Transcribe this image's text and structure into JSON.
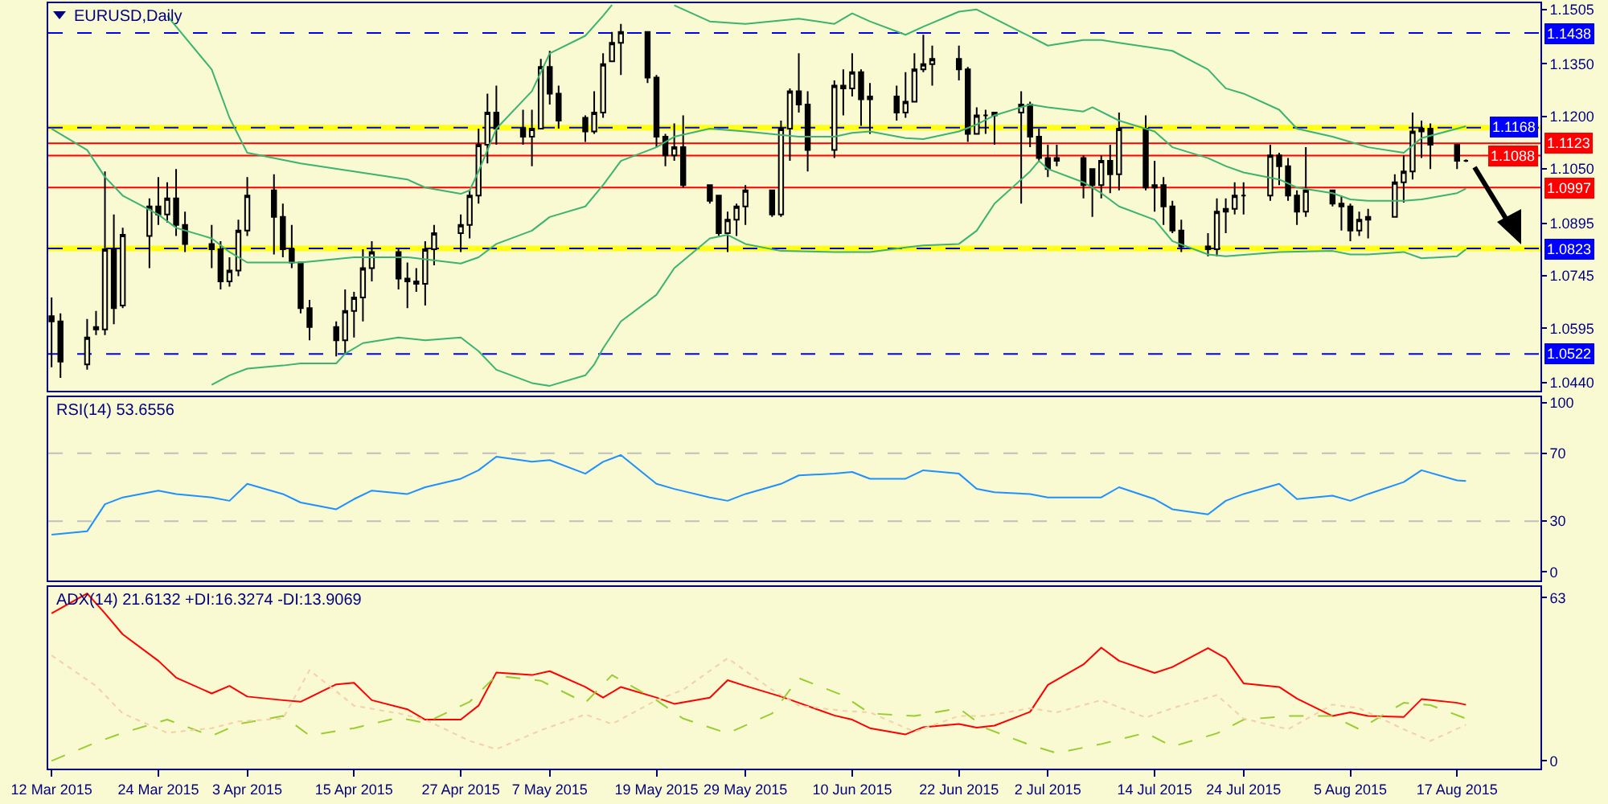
{
  "chart_data": [
    {
      "type": "candlestick",
      "title": "EURUSD,Daily",
      "color": "#000000",
      "x": [
        "2015-03-12",
        "2015-03-13",
        "2015-03-16",
        "2015-03-17",
        "2015-03-18",
        "2015-03-19",
        "2015-03-20",
        "2015-03-23",
        "2015-03-24",
        "2015-03-25",
        "2015-03-26",
        "2015-03-27",
        "2015-03-30",
        "2015-03-31",
        "2015-04-01",
        "2015-04-02",
        "2015-04-03",
        "2015-04-06",
        "2015-04-07",
        "2015-04-08",
        "2015-04-09",
        "2015-04-10",
        "2015-04-13",
        "2015-04-14",
        "2015-04-15",
        "2015-04-16",
        "2015-04-17",
        "2015-04-20",
        "2015-04-21",
        "2015-04-22",
        "2015-04-23",
        "2015-04-24",
        "2015-04-27",
        "2015-04-28",
        "2015-04-29",
        "2015-04-30",
        "2015-05-01",
        "2015-05-04",
        "2015-05-05",
        "2015-05-06",
        "2015-05-07",
        "2015-05-08",
        "2015-05-11",
        "2015-05-12",
        "2015-05-13",
        "2015-05-14",
        "2015-05-15",
        "2015-05-18",
        "2015-05-19",
        "2015-05-20",
        "2015-05-21",
        "2015-05-22",
        "2015-05-25",
        "2015-05-26",
        "2015-05-27",
        "2015-05-28",
        "2015-05-29",
        "2015-06-01",
        "2015-06-02",
        "2015-06-03",
        "2015-06-04",
        "2015-06-05",
        "2015-06-08",
        "2015-06-09",
        "2015-06-10",
        "2015-06-11",
        "2015-06-12",
        "2015-06-15",
        "2015-06-16",
        "2015-06-17",
        "2015-06-18",
        "2015-06-19",
        "2015-06-22",
        "2015-06-23",
        "2015-06-24",
        "2015-06-25",
        "2015-06-26",
        "2015-06-29",
        "2015-06-30",
        "2015-07-01",
        "2015-07-02",
        "2015-07-03",
        "2015-07-06",
        "2015-07-07",
        "2015-07-08",
        "2015-07-09",
        "2015-07-10",
        "2015-07-13",
        "2015-07-14",
        "2015-07-15",
        "2015-07-16",
        "2015-07-17",
        "2015-07-20",
        "2015-07-21",
        "2015-07-22",
        "2015-07-23",
        "2015-07-24",
        "2015-07-27",
        "2015-07-28",
        "2015-07-29",
        "2015-07-30",
        "2015-07-31",
        "2015-08-03",
        "2015-08-04",
        "2015-08-05",
        "2015-08-06",
        "2015-08-07",
        "2015-08-10",
        "2015-08-11",
        "2015-08-12",
        "2015-08-13",
        "2015-08-14",
        "2015-08-17",
        "2015-08-18"
      ],
      "ohlc": [
        [
          1.063,
          1.0683,
          1.0484,
          1.0615
        ],
        [
          1.0615,
          1.0638,
          1.0454,
          1.05
        ],
        [
          1.0492,
          1.0622,
          1.0477,
          1.0569
        ],
        [
          1.0592,
          1.0645,
          1.0576,
          1.0599
        ],
        [
          1.0592,
          1.1043,
          1.0576,
          1.0821
        ],
        [
          1.0821,
          1.092,
          1.0607,
          1.0653
        ],
        [
          1.066,
          1.0882,
          1.0653,
          1.0862
        ],
        [
          1.0859,
          1.0966,
          1.0767,
          1.0943
        ],
        [
          1.0943,
          1.1027,
          1.089,
          1.092
        ],
        [
          1.092,
          1.1012,
          1.0897,
          1.0966
        ],
        [
          1.0966,
          1.105,
          1.0859,
          1.089
        ],
        [
          1.089,
          1.0928,
          1.0813,
          1.0836
        ],
        [
          1.0836,
          1.089,
          1.0767,
          1.0821
        ],
        [
          1.0821,
          1.0844,
          1.0706,
          1.0729
        ],
        [
          1.0729,
          1.0798,
          1.0714,
          1.076
        ],
        [
          1.076,
          1.0905,
          1.0744,
          1.0874
        ],
        [
          1.0874,
          1.1027,
          1.0859,
          1.0974
        ],
        [
          1.0989,
          1.1035,
          1.0806,
          1.0913
        ],
        [
          1.0913,
          1.0951,
          1.0798,
          1.0821
        ],
        [
          1.0821,
          1.089,
          1.0767,
          1.0783
        ],
        [
          1.0783,
          1.0783,
          1.0638,
          1.0653
        ],
        [
          1.0653,
          1.0676,
          1.0561,
          1.0599
        ],
        [
          1.0599,
          1.0615,
          1.0515,
          1.0561
        ],
        [
          1.0561,
          1.0706,
          1.0523,
          1.0645
        ],
        [
          1.0645,
          1.0699,
          1.0569,
          1.0683
        ],
        [
          1.0683,
          1.0821,
          1.0615,
          1.0767
        ],
        [
          1.0767,
          1.0844,
          1.0729,
          1.0813
        ],
        [
          1.0813,
          1.0821,
          1.0706,
          1.0737
        ],
        [
          1.0737,
          1.0783,
          1.0653,
          1.0729
        ],
        [
          1.0729,
          1.0767,
          1.0699,
          1.0722
        ],
        [
          1.0722,
          1.0844,
          1.066,
          1.0821
        ],
        [
          1.0821,
          1.089,
          1.0775,
          1.0867
        ],
        [
          1.0867,
          1.092,
          1.0813,
          1.089
        ],
        [
          1.089,
          1.0989,
          1.0852,
          1.0974
        ],
        [
          1.0974,
          1.1165,
          1.0951,
          1.1119
        ],
        [
          1.1119,
          1.1265,
          1.1066,
          1.1211
        ],
        [
          1.1211,
          1.1288,
          1.1119,
          1.1165
        ],
        [
          1.1165,
          1.1219,
          1.1119,
          1.1142
        ],
        [
          1.1142,
          1.1219,
          1.1058,
          1.1165
        ],
        [
          1.1165,
          1.1364,
          1.1165,
          1.1341
        ],
        [
          1.1341,
          1.1387,
          1.1234,
          1.1265
        ],
        [
          1.1265,
          1.1288,
          1.1165,
          1.1188
        ],
        [
          1.1196,
          1.1203,
          1.1127,
          1.1157
        ],
        [
          1.1157,
          1.1272,
          1.115,
          1.1211
        ],
        [
          1.1211,
          1.138,
          1.1196,
          1.1349
        ],
        [
          1.1357,
          1.1441,
          1.1357,
          1.141
        ],
        [
          1.141,
          1.1464,
          1.1318,
          1.1441
        ],
        [
          1.1441,
          1.1441,
          1.1295,
          1.1311
        ],
        [
          1.1311,
          1.1318,
          1.1112,
          1.1142
        ],
        [
          1.1142,
          1.115,
          1.1058,
          1.1089
        ],
        [
          1.1089,
          1.118,
          1.1073,
          1.1112
        ],
        [
          1.1112,
          1.1203,
          1.0997,
          1.1004
        ],
        [
          1.1004,
          1.1004,
          1.0951,
          1.0959
        ],
        [
          1.0974,
          1.0974,
          1.0859,
          1.0867
        ],
        [
          1.0867,
          1.0928,
          1.0813,
          1.0905
        ],
        [
          1.0905,
          1.0951,
          1.0859,
          1.0943
        ],
        [
          1.0943,
          1.1004,
          1.089,
          1.0989
        ],
        [
          1.0989,
          1.0989,
          1.0913,
          1.092
        ],
        [
          1.092,
          1.1188,
          1.0913,
          1.1165
        ],
        [
          1.1165,
          1.128,
          1.1073,
          1.1272
        ],
        [
          1.1272,
          1.138,
          1.1211,
          1.1234
        ],
        [
          1.1234,
          1.1272,
          1.1043,
          1.1104
        ],
        [
          1.1104,
          1.1303,
          1.1081,
          1.1288
        ],
        [
          1.1288,
          1.1334,
          1.1203,
          1.128
        ],
        [
          1.128,
          1.138,
          1.1257,
          1.1326
        ],
        [
          1.1326,
          1.1334,
          1.1173,
          1.1249
        ],
        [
          1.1249,
          1.1295,
          1.115,
          1.1257
        ],
        [
          1.1257,
          1.1288,
          1.1188,
          1.1211
        ],
        [
          1.1211,
          1.1326,
          1.1196,
          1.1242
        ],
        [
          1.1242,
          1.138,
          1.1242,
          1.1334
        ],
        [
          1.1334,
          1.1433,
          1.1326,
          1.1349
        ],
        [
          1.1349,
          1.1402,
          1.1288,
          1.1364
        ],
        [
          1.1364,
          1.1402,
          1.1303,
          1.1334
        ],
        [
          1.1334,
          1.1341,
          1.1127,
          1.115
        ],
        [
          1.115,
          1.1226,
          1.115,
          1.1203
        ],
        [
          1.1203,
          1.1219,
          1.115,
          1.1203
        ],
        [
          1.1203,
          1.1211,
          1.1119,
          1.1211
        ],
        [
          1.1211,
          1.1272,
          1.0951,
          1.1234
        ],
        [
          1.1234,
          1.1242,
          1.1112,
          1.1142
        ],
        [
          1.1142,
          1.1165,
          1.1073,
          1.1081
        ],
        [
          1.1081,
          1.1119,
          1.1027,
          1.105
        ],
        [
          1.1073,
          1.1119,
          1.1058,
          1.1081
        ],
        [
          1.1081,
          1.1089,
          1.0966,
          1.1004
        ],
        [
          1.105,
          1.105,
          1.0913,
          1.1004
        ],
        [
          1.1004,
          1.1089,
          1.0966,
          1.1073
        ],
        [
          1.1073,
          1.1119,
          1.0981,
          1.1035
        ],
        [
          1.1035,
          1.1211,
          1.0989,
          1.1165
        ],
        [
          1.1165,
          1.1203,
          1.0989,
          1.0997
        ],
        [
          1.0997,
          1.1073,
          1.0928,
          1.1004
        ],
        [
          1.1004,
          1.1027,
          1.089,
          1.0943
        ],
        [
          1.0943,
          1.0959,
          1.0867,
          1.0874
        ],
        [
          1.0874,
          1.0905,
          1.0813,
          1.0829
        ],
        [
          1.0829,
          1.0867,
          1.0801,
          1.0821
        ],
        [
          1.0821,
          1.0966,
          1.0801,
          1.0928
        ],
        [
          1.0928,
          1.0966,
          1.0867,
          1.0936
        ],
        [
          1.0936,
          1.1012,
          1.092,
          1.0974
        ],
        [
          1.0974,
          1.1012,
          1.092,
          1.0974
        ],
        [
          1.0974,
          1.1119,
          1.0959,
          1.1089
        ],
        [
          1.1089,
          1.1096,
          1.1004,
          1.1058
        ],
        [
          1.1058,
          1.1081,
          1.0959,
          1.0974
        ],
        [
          1.0974,
          1.0989,
          1.089,
          1.0928
        ],
        [
          1.0928,
          1.1112,
          1.0913,
          1.0989
        ],
        [
          1.0989,
          1.0989,
          1.0943,
          1.0951
        ],
        [
          1.0951,
          1.0974,
          1.0874,
          1.0943
        ],
        [
          1.0943,
          1.0951,
          1.0844,
          1.0874
        ],
        [
          1.0874,
          1.0928,
          1.0859,
          1.0905
        ],
        [
          1.0905,
          1.0936,
          1.0852,
          1.0913
        ],
        [
          1.0913,
          1.1035,
          1.0913,
          1.1012
        ],
        [
          1.1012,
          1.1089,
          1.0954,
          1.1043
        ],
        [
          1.1043,
          1.1211,
          1.102,
          1.1157
        ],
        [
          1.1157,
          1.1188,
          1.1081,
          1.1165
        ],
        [
          1.1165,
          1.118,
          1.105,
          1.1119
        ],
        [
          1.1119,
          1.1119,
          1.105,
          1.1073
        ],
        [
          1.1073,
          1.1077,
          1.107,
          1.1073
        ]
      ],
      "xlim": [
        "2015-03-11T15:00",
        "2015-08-26T09:00"
      ],
      "ylim": [
        1.0417,
        1.1523
      ],
      "yticks": [
        1.1505,
        {
          "value": 1.135,
          "label": "1.1350"
        },
        {
          "value": 1.12,
          "label": "1.1200"
        },
        {
          "value": 1.105,
          "label": "1.1050"
        },
        1.0895,
        1.0745,
        1.0595,
        {
          "value": 1.044,
          "label": "1.0440"
        }
      ],
      "tick_labels": "y",
      "bands": [
        {
          "axis": "y",
          "from": 1.116,
          "to": 1.1176,
          "color": "#ffff00"
        },
        {
          "axis": "y",
          "from": 1.0815,
          "to": 1.0831,
          "color": "#ffff00"
        }
      ],
      "ref_lines": [
        {
          "axis": "y",
          "value": 1.1438,
          "label": "1.1438",
          "color": "#0000ff",
          "line_style": "dashed"
        },
        {
          "axis": "y",
          "value": 1.1168,
          "label": "1.1168",
          "color": "#0000ff",
          "line_style": "dashed"
        },
        {
          "axis": "y",
          "value": 1.1123,
          "label": "1.1123",
          "color": "#ff0000",
          "line_style": "solid"
        },
        {
          "axis": "y",
          "value": 1.1088,
          "label": "1.1088",
          "color": "#ff0000",
          "line_style": "solid"
        },
        {
          "axis": "y",
          "value": 1.0997,
          "label": "1.0997",
          "color": "#ff0000",
          "line_style": "solid"
        },
        {
          "axis": "y",
          "value": 1.0823,
          "label": "1.0823",
          "color": "#0000ff",
          "line_style": "dashed"
        },
        {
          "axis": "y",
          "value": 1.0522,
          "label": "1.0522",
          "color": "#0000ff",
          "line_style": "dashed"
        }
      ],
      "series": [
        {
          "type": "line",
          "color": "#3cb371",
          "x": [
            "2015-03-25",
            "2015-03-30",
            "2015-04-01",
            "2015-04-03",
            "2015-04-09",
            "2015-04-15",
            "2015-04-21",
            "2015-04-23",
            "2015-04-27",
            "2015-04-28",
            "2015-04-29",
            "2015-05-01",
            "2015-05-05",
            "2015-05-07",
            "2015-05-11",
            "2015-05-13",
            "2015-05-14",
            "2015-05-18",
            "2015-05-21",
            "2015-05-25",
            "2015-05-29",
            "2015-06-04",
            "2015-06-08",
            "2015-06-10",
            "2015-06-12",
            "2015-06-16",
            "2015-06-18",
            "2015-06-22",
            "2015-06-24",
            "2015-06-26",
            "2015-06-30",
            "2015-07-02",
            "2015-07-06",
            "2015-07-08",
            "2015-07-10",
            "2015-07-14",
            "2015-07-16",
            "2015-07-20",
            "2015-07-22",
            "2015-07-24",
            "2015-07-28",
            "2015-07-30",
            "2015-08-03",
            "2015-08-05",
            "2015-08-07",
            "2015-08-11",
            "2015-08-13",
            "2015-08-17",
            "2015-08-18"
          ],
          "values": [
            1.1487,
            1.1334,
            1.1196,
            1.1096,
            1.1066,
            1.1043,
            1.102,
            1.0997,
            1.0979,
            1.0989,
            1.1043,
            1.1165,
            1.1272,
            1.138,
            1.143,
            1.1487,
            1.1518,
            null,
            1.1517,
            1.1471,
            1.1464,
            1.1479,
            1.1464,
            1.1494,
            1.1471,
            1.1433,
            1.1456,
            1.1499,
            1.1505,
            1.1479,
            1.1428,
            1.1402,
            1.1418,
            1.1418,
            1.141,
            1.1395,
            1.1387,
            1.1334,
            1.128,
            1.1265,
            1.1219,
            1.1165,
            1.1142,
            1.1127,
            1.1112,
            1.1096,
            1.1138,
            1.1165,
            1.1172
          ]
        },
        {
          "type": "line",
          "color": "#3cb371",
          "x": [
            "2015-03-12",
            "2015-03-16",
            "2015-03-18",
            "2015-03-20",
            "2015-03-24",
            "2015-03-26",
            "2015-03-30",
            "2015-04-01",
            "2015-04-03",
            "2015-04-09",
            "2015-04-15",
            "2015-04-21",
            "2015-04-27",
            "2015-04-29",
            "2015-05-01",
            "2015-05-05",
            "2015-05-07",
            "2015-05-11",
            "2015-05-13",
            "2015-05-15",
            "2015-05-19",
            "2015-05-21",
            "2015-05-25",
            "2015-05-29",
            "2015-06-04",
            "2015-06-08",
            "2015-06-10",
            "2015-06-12",
            "2015-06-16",
            "2015-06-18",
            "2015-06-22",
            "2015-06-24",
            "2015-06-26",
            "2015-06-30",
            "2015-07-02",
            "2015-07-06",
            "2015-07-07",
            "2015-07-10",
            "2015-07-14",
            "2015-07-16",
            "2015-07-20",
            "2015-07-22",
            "2015-07-24",
            "2015-07-28",
            "2015-07-30",
            "2015-08-03",
            "2015-08-05",
            "2015-08-07",
            "2015-08-11",
            "2015-08-13",
            "2015-08-17",
            "2015-08-18"
          ],
          "values": [
            1.1165,
            1.1104,
            1.1027,
            1.0974,
            1.092,
            1.0882,
            1.0852,
            1.0813,
            1.0783,
            1.0783,
            1.0798,
            1.0798,
            1.078,
            1.0798,
            1.0836,
            1.0874,
            1.0913,
            1.0943,
            1.1004,
            1.1073,
            1.1112,
            1.1142,
            1.1165,
            1.1157,
            1.1142,
            1.1142,
            1.1153,
            1.1157,
            1.1138,
            1.1135,
            1.1157,
            1.1177,
            1.1203,
            1.1234,
            1.1226,
            1.1214,
            1.1226,
            1.1188,
            1.1157,
            1.1112,
            1.1081,
            1.1058,
            1.104,
            1.102,
            1.0997,
            1.0981,
            1.0963,
            1.0959,
            1.0959,
            1.0963,
            1.0981,
            1.0994
          ]
        },
        {
          "type": "line",
          "color": "#3cb371",
          "x": [
            "2015-03-30",
            "2015-04-01",
            "2015-04-03",
            "2015-04-07",
            "2015-04-09",
            "2015-04-13",
            "2015-04-14",
            "2015-04-16",
            "2015-04-20",
            "2015-04-23",
            "2015-04-27",
            "2015-04-29",
            "2015-05-01",
            "2015-05-05",
            "2015-05-07",
            "2015-05-11",
            "2015-05-12",
            "2015-05-13",
            "2015-05-15",
            "2015-05-19",
            "2015-05-21",
            "2015-05-25",
            "2015-05-27",
            "2015-05-29",
            "2015-06-02",
            "2015-06-08",
            "2015-06-12",
            "2015-06-16",
            "2015-06-18",
            "2015-06-22",
            "2015-06-24",
            "2015-06-26",
            "2015-06-30",
            "2015-07-01",
            "2015-07-02",
            "2015-07-06",
            "2015-07-08",
            "2015-07-10",
            "2015-07-14",
            "2015-07-16",
            "2015-07-20",
            "2015-07-22",
            "2015-07-28",
            "2015-08-03",
            "2015-08-05",
            "2015-08-07",
            "2015-08-11",
            "2015-08-13",
            "2015-08-17",
            "2015-08-18"
          ],
          "values": [
            1.0434,
            1.0461,
            1.048,
            1.0489,
            1.0495,
            1.0495,
            1.0523,
            1.0553,
            1.0569,
            1.0561,
            1.0569,
            1.053,
            1.0477,
            1.0439,
            1.0431,
            1.0461,
            1.0492,
            1.0538,
            1.0615,
            1.0691,
            1.0767,
            1.0852,
            1.0862,
            1.0836,
            1.0816,
            1.0813,
            1.0813,
            1.0826,
            1.0832,
            1.0836,
            1.0874,
            1.0951,
            1.1043,
            1.1073,
            1.105,
            1.1012,
            1.0981,
            1.0943,
            1.0905,
            1.0844,
            1.0806,
            1.0801,
            1.0813,
            1.0816,
            1.0806,
            1.0806,
            1.0813,
            1.0795,
            1.0801,
            1.0821
          ]
        }
      ]
    },
    {
      "type": "line",
      "title": "RSI(14) 53.6556",
      "xlim": [
        "2015-03-11T15:00",
        "2015-08-26T09:00"
      ],
      "ylim": [
        -5,
        103.1
      ],
      "yticks": [
        0,
        30,
        70,
        100
      ],
      "tick_labels": "y",
      "ref_lines": [
        {
          "axis": "y",
          "value": 70,
          "color": "#c0c0c0",
          "line_style": "dashed"
        },
        {
          "axis": "y",
          "value": 30,
          "color": "#c0c0c0",
          "line_style": "dashed"
        }
      ],
      "series": [
        {
          "color": "#1e90ff",
          "x": [
            "2015-03-12",
            "2015-03-16",
            "2015-03-18",
            "2015-03-20",
            "2015-03-24",
            "2015-03-26",
            "2015-03-30",
            "2015-04-01",
            "2015-04-03",
            "2015-04-07",
            "2015-04-09",
            "2015-04-13",
            "2015-04-15",
            "2015-04-17",
            "2015-04-21",
            "2015-04-23",
            "2015-04-27",
            "2015-04-29",
            "2015-05-01",
            "2015-05-05",
            "2015-05-07",
            "2015-05-11",
            "2015-05-13",
            "2015-05-15",
            "2015-05-19",
            "2015-05-21",
            "2015-05-25",
            "2015-05-27",
            "2015-05-29",
            "2015-06-02",
            "2015-06-04",
            "2015-06-08",
            "2015-06-10",
            "2015-06-12",
            "2015-06-16",
            "2015-06-18",
            "2015-06-22",
            "2015-06-24",
            "2015-06-26",
            "2015-06-30",
            "2015-07-02",
            "2015-07-06",
            "2015-07-08",
            "2015-07-10",
            "2015-07-14",
            "2015-07-16",
            "2015-07-20",
            "2015-07-22",
            "2015-07-24",
            "2015-07-28",
            "2015-07-30",
            "2015-08-03",
            "2015-08-05",
            "2015-08-07",
            "2015-08-11",
            "2015-08-13",
            "2015-08-17",
            "2015-08-18"
          ],
          "values": [
            22,
            24,
            40,
            44,
            48,
            46,
            44,
            42,
            52,
            46,
            41,
            37,
            43,
            48,
            46,
            50,
            55,
            60,
            68,
            65,
            66,
            58,
            65,
            69,
            52,
            49,
            44,
            42,
            46,
            52,
            57,
            58,
            59,
            55,
            55,
            60,
            58,
            49,
            47,
            46,
            44,
            44,
            44,
            50,
            43,
            37,
            34,
            42,
            46,
            52,
            43,
            45,
            42,
            46,
            53,
            60,
            54,
            53.6556
          ]
        }
      ]
    },
    {
      "type": "line",
      "title": "ADX(14) 21.6132 +DI:16.3274 -DI:13.9069",
      "xlim": [
        "2015-03-11T15:00",
        "2015-08-26T09:00"
      ],
      "ylim": [
        -3,
        67.1
      ],
      "yticks": [
        0,
        63
      ],
      "xticks": [
        {
          "value": "2015-03-12",
          "label": "12 Mar 2015"
        },
        {
          "value": "2015-03-24",
          "label": "24 Mar 2015"
        },
        {
          "value": "2015-04-03",
          "label": "3 Apr 2015"
        },
        {
          "value": "2015-04-15",
          "label": "15 Apr 2015"
        },
        {
          "value": "2015-04-27",
          "label": "27 Apr 2015"
        },
        {
          "value": "2015-05-07",
          "label": "7 May 2015"
        },
        {
          "value": "2015-05-19",
          "label": "19 May 2015"
        },
        {
          "value": "2015-05-29",
          "label": "29 May 2015"
        },
        {
          "value": "2015-06-10",
          "label": "10 Jun 2015"
        },
        {
          "value": "2015-06-22",
          "label": "22 Jun 2015"
        },
        {
          "value": "2015-07-02",
          "label": "2 Jul 2015"
        },
        {
          "value": "2015-07-14",
          "label": "14 Jul 2015"
        },
        {
          "value": "2015-07-24",
          "label": "24 Jul 2015"
        },
        {
          "value": "2015-08-05",
          "label": "5 Aug 2015"
        },
        {
          "value": "2015-08-17",
          "label": "17 Aug 2015"
        }
      ],
      "series": [
        {
          "color": "#ff0000",
          "line_style": "solid",
          "x": [
            "2015-03-12",
            "2015-03-16",
            "2015-03-18",
            "2015-03-20",
            "2015-03-24",
            "2015-03-26",
            "2015-03-30",
            "2015-04-01",
            "2015-04-03",
            "2015-04-07",
            "2015-04-09",
            "2015-04-13",
            "2015-04-15",
            "2015-04-17",
            "2015-04-21",
            "2015-04-23",
            "2015-04-27",
            "2015-04-29",
            "2015-05-01",
            "2015-05-05",
            "2015-05-07",
            "2015-05-11",
            "2015-05-13",
            "2015-05-15",
            "2015-05-19",
            "2015-05-21",
            "2015-05-25",
            "2015-05-27",
            "2015-05-29",
            "2015-06-02",
            "2015-06-04",
            "2015-06-08",
            "2015-06-10",
            "2015-06-12",
            "2015-06-16",
            "2015-06-18",
            "2015-06-22",
            "2015-06-24",
            "2015-06-26",
            "2015-06-30",
            "2015-07-02",
            "2015-07-06",
            "2015-07-08",
            "2015-07-10",
            "2015-07-14",
            "2015-07-16",
            "2015-07-20",
            "2015-07-22",
            "2015-07-24",
            "2015-07-28",
            "2015-07-30",
            "2015-08-03",
            "2015-08-05",
            "2015-08-07",
            "2015-08-11",
            "2015-08-13",
            "2015-08-17",
            "2015-08-18"
          ],
          "values": [
            56.9,
            64.6,
            56.9,
            48.8,
            38.6,
            32.1,
            26.0,
            28.9,
            24.8,
            23.4,
            22.8,
            29.5,
            30.1,
            23.4,
            19.9,
            15.9,
            15.9,
            21.3,
            34.1,
            33.1,
            34.6,
            28.5,
            24.4,
            28.5,
            24.4,
            22.0,
            24.4,
            31.1,
            28.9,
            24.8,
            22.4,
            17.5,
            15.9,
            12.6,
            10.2,
            13.0,
            14.2,
            12.8,
            13.6,
            18.9,
            29.3,
            37.2,
            43.7,
            38.6,
            33.9,
            36.2,
            43.5,
            39.6,
            29.9,
            28.5,
            24.0,
            17.3,
            18.7,
            17.3,
            16.9,
            23.8,
            22.4,
            21.6132
          ]
        },
        {
          "color": "#9acd32",
          "line_style": "dashed",
          "x": [
            "2015-03-12",
            "2015-03-17",
            "2015-03-20",
            "2015-03-25",
            "2015-03-30",
            "2015-04-02",
            "2015-04-07",
            "2015-04-10",
            "2015-04-15",
            "2015-04-20",
            "2015-04-23",
            "2015-04-28",
            "2015-05-01",
            "2015-05-06",
            "2015-05-11",
            "2015-05-14",
            "2015-05-19",
            "2015-05-22",
            "2015-05-27",
            "2015-06-01",
            "2015-06-04",
            "2015-06-09",
            "2015-06-12",
            "2015-06-17",
            "2015-06-22",
            "2015-06-25",
            "2015-06-30",
            "2015-07-03",
            "2015-07-08",
            "2015-07-13",
            "2015-07-16",
            "2015-07-21",
            "2015-07-24",
            "2015-07-29",
            "2015-08-03",
            "2015-08-06",
            "2015-08-11",
            "2015-08-14",
            "2015-08-18"
          ],
          "values": [
            0.0,
            7.1,
            10.8,
            15.9,
            9.6,
            14.2,
            17.3,
            9.8,
            12.6,
            16.7,
            14.6,
            22.8,
            32.9,
            30.9,
            22.4,
            33.1,
            23.4,
            16.3,
            10.6,
            18.3,
            31.9,
            25.2,
            18.3,
            17.3,
            20.3,
            12.6,
            6.1,
            3.0,
            6.5,
            10.8,
            5.5,
            10.6,
            15.9,
            17.3,
            17.3,
            12.2,
            22.4,
            21.5,
            16.3274
          ]
        },
        {
          "color": "#f5cfa8",
          "line_style": "dotted",
          "x": [
            "2015-03-12",
            "2015-03-17",
            "2015-03-20",
            "2015-03-25",
            "2015-03-30",
            "2015-04-02",
            "2015-04-07",
            "2015-04-10",
            "2015-04-15",
            "2015-04-20",
            "2015-04-23",
            "2015-04-28",
            "2015-05-01",
            "2015-05-06",
            "2015-05-11",
            "2015-05-14",
            "2015-05-19",
            "2015-05-22",
            "2015-05-27",
            "2015-06-01",
            "2015-06-04",
            "2015-06-09",
            "2015-06-12",
            "2015-06-17",
            "2015-06-22",
            "2015-06-25",
            "2015-06-30",
            "2015-07-03",
            "2015-07-08",
            "2015-07-13",
            "2015-07-16",
            "2015-07-21",
            "2015-07-24",
            "2015-07-29",
            "2015-08-03",
            "2015-08-06",
            "2015-08-11",
            "2015-08-14",
            "2015-08-18"
          ],
          "values": [
            40.7,
            28.9,
            18.3,
            10.8,
            12.6,
            15.2,
            16.3,
            35.0,
            21.3,
            18.3,
            15.9,
            7.7,
            4.5,
            11.8,
            17.9,
            14.2,
            23.4,
            27.4,
            39.6,
            27.4,
            21.3,
            19.3,
            18.7,
            11.2,
            17.3,
            17.3,
            20.3,
            18.7,
            23.4,
            16.7,
            20.3,
            25.4,
            16.3,
            12.2,
            21.7,
            20.3,
            12.2,
            7.7,
            13.9069
          ]
        }
      ]
    }
  ]
}
